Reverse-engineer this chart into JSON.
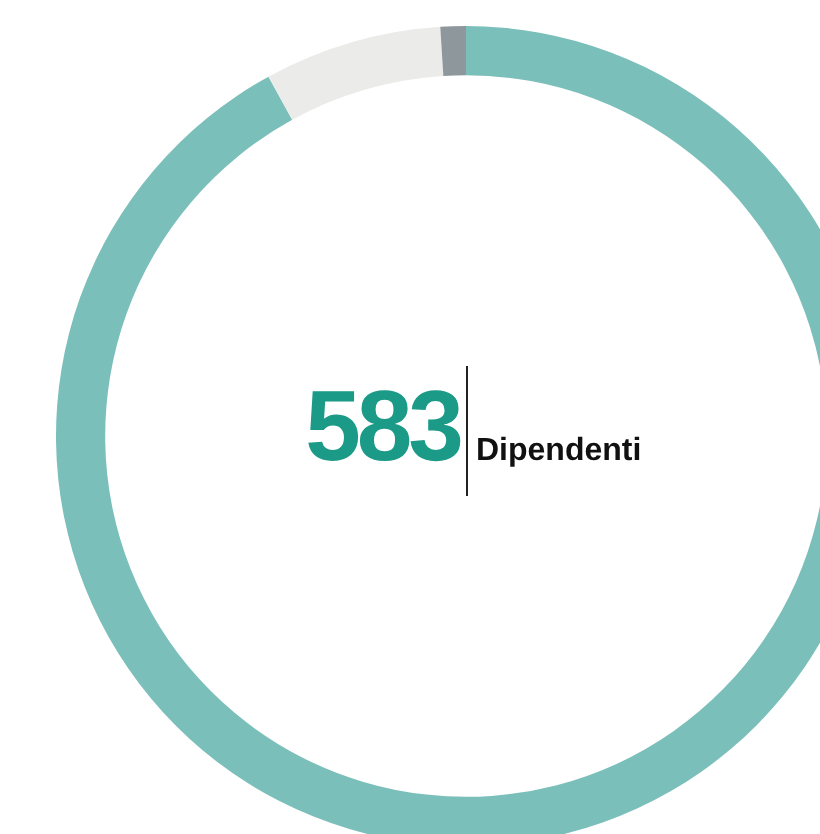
{
  "chart_data": {
    "type": "donut",
    "categories": [
      null,
      null,
      null
    ],
    "values": [
      92,
      7,
      1
    ],
    "colors": [
      "#7bbfba",
      "#ebebea",
      "#8e979c"
    ],
    "annotations": [
      "583",
      "Dipendenti"
    ],
    "legend": false
  }
}
